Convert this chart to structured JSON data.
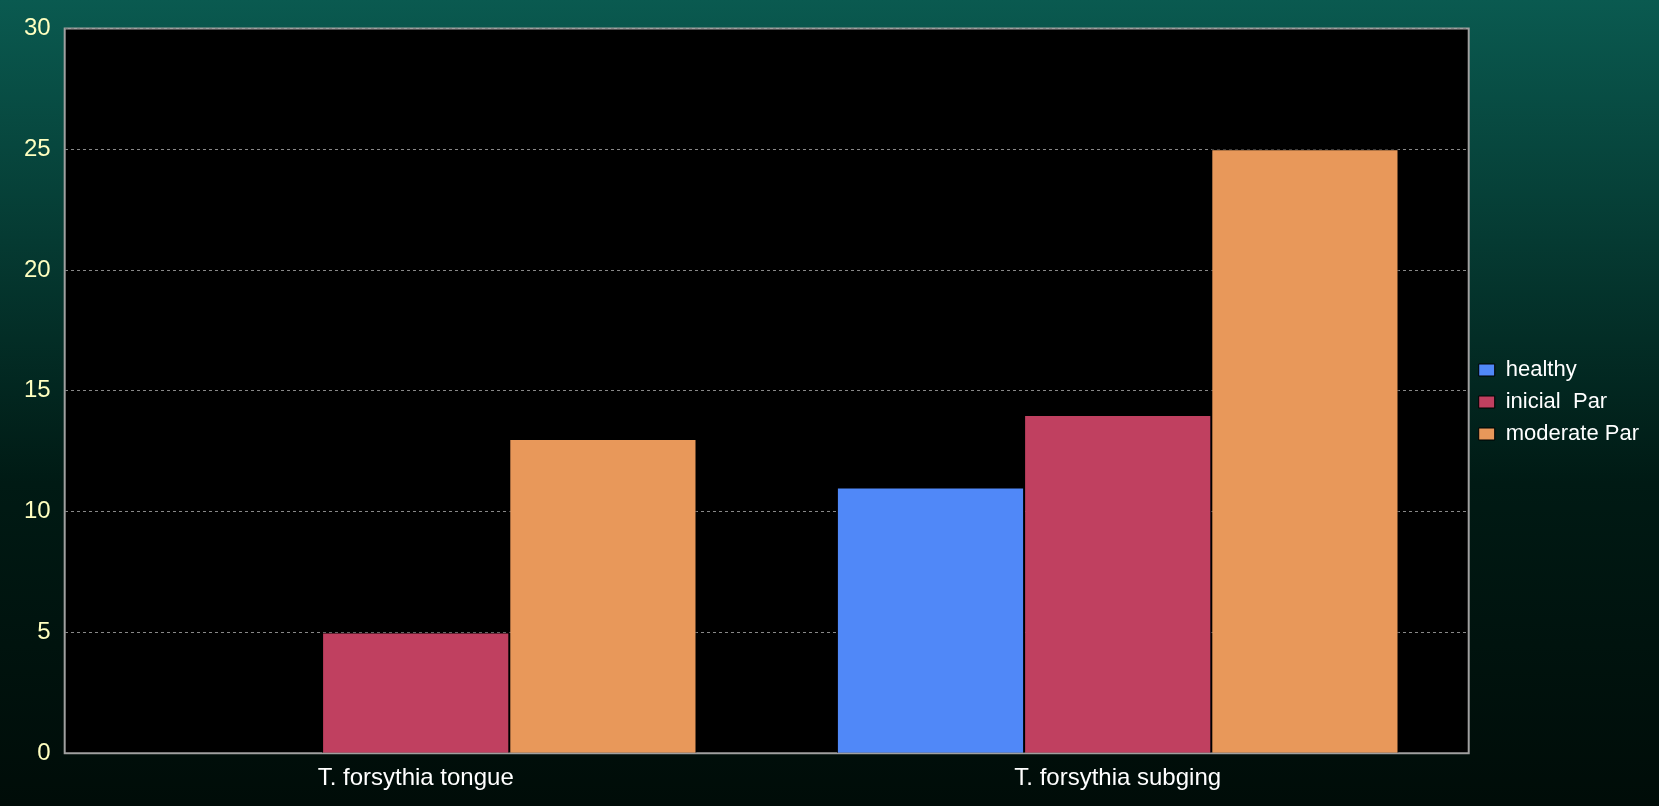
{
  "chart_data": {
    "type": "bar",
    "categories": [
      "T. forsythia tongue",
      "T. forsythia subging"
    ],
    "series": [
      {
        "name": "healthy",
        "color": "#5088f8",
        "values": [
          0,
          11
        ]
      },
      {
        "name": "inicial  Par",
        "color": "#c04060",
        "values": [
          5,
          14
        ]
      },
      {
        "name": "moderate Par",
        "color": "#e8985a",
        "values": [
          13,
          25
        ]
      }
    ],
    "ylim": [
      0,
      30
    ],
    "yticks": [
      0,
      5,
      10,
      15,
      20,
      25,
      30
    ],
    "grid": "y",
    "legend": "right"
  }
}
